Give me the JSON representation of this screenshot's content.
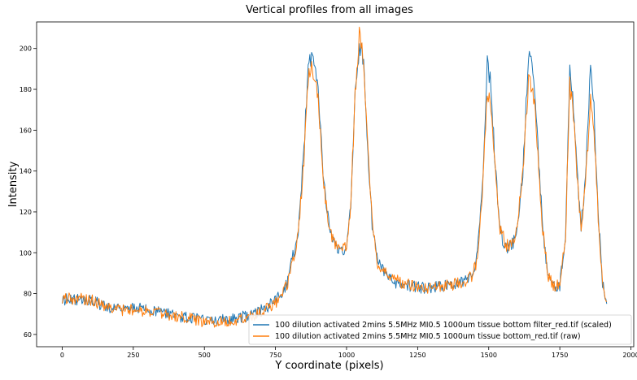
{
  "chart_data": {
    "type": "line",
    "title": "Vertical profiles from all images",
    "xlabel": "Y coordinate (pixels)",
    "ylabel": "Intensity",
    "xlim": [
      -90,
      2010
    ],
    "ylim": [
      54,
      213
    ],
    "xticks": [
      0,
      250,
      500,
      750,
      1000,
      1250,
      1500,
      1750,
      2000
    ],
    "yticks": [
      60,
      80,
      100,
      120,
      140,
      160,
      180,
      200
    ],
    "legend_position": "lower-right",
    "grid": false,
    "series": [
      {
        "name": "100 dilution activated 2mins 5.5MHz MI0.5 1000um tissue bottom filter_red.tif (scaled)",
        "color": "#1f77b4",
        "points": [
          [
            0,
            77
          ],
          [
            100,
            77
          ],
          [
            150,
            74
          ],
          [
            200,
            72
          ],
          [
            250,
            73
          ],
          [
            300,
            72
          ],
          [
            350,
            71
          ],
          [
            400,
            69
          ],
          [
            450,
            68
          ],
          [
            500,
            67
          ],
          [
            550,
            67
          ],
          [
            600,
            68
          ],
          [
            650,
            69
          ],
          [
            700,
            72
          ],
          [
            750,
            76
          ],
          [
            790,
            85
          ],
          [
            830,
            110
          ],
          [
            850,
            150
          ],
          [
            865,
            190
          ],
          [
            880,
            199
          ],
          [
            900,
            180
          ],
          [
            920,
            135
          ],
          [
            940,
            112
          ],
          [
            960,
            103
          ],
          [
            980,
            100
          ],
          [
            1000,
            104
          ],
          [
            1015,
            125
          ],
          [
            1030,
            180
          ],
          [
            1045,
            200
          ],
          [
            1060,
            195
          ],
          [
            1075,
            150
          ],
          [
            1090,
            115
          ],
          [
            1110,
            95
          ],
          [
            1150,
            87
          ],
          [
            1200,
            84
          ],
          [
            1250,
            83
          ],
          [
            1300,
            83
          ],
          [
            1350,
            84
          ],
          [
            1400,
            85
          ],
          [
            1440,
            88
          ],
          [
            1460,
            98
          ],
          [
            1480,
            140
          ],
          [
            1495,
            192
          ],
          [
            1505,
            185
          ],
          [
            1520,
            150
          ],
          [
            1540,
            110
          ],
          [
            1560,
            103
          ],
          [
            1580,
            103
          ],
          [
            1600,
            110
          ],
          [
            1620,
            140
          ],
          [
            1640,
            195
          ],
          [
            1655,
            190
          ],
          [
            1670,
            160
          ],
          [
            1690,
            110
          ],
          [
            1710,
            88
          ],
          [
            1730,
            83
          ],
          [
            1750,
            84
          ],
          [
            1770,
            110
          ],
          [
            1785,
            190
          ],
          [
            1795,
            180
          ],
          [
            1810,
            140
          ],
          [
            1825,
            113
          ],
          [
            1840,
            135
          ],
          [
            1858,
            190
          ],
          [
            1870,
            170
          ],
          [
            1885,
            120
          ],
          [
            1900,
            85
          ],
          [
            1915,
            75
          ]
        ]
      },
      {
        "name": "100 dilution activated 2mins 5.5MHz MI0.5 1000um tissue bottom_red.tif (raw)",
        "color": "#ff7f0e",
        "points": [
          [
            0,
            78
          ],
          [
            100,
            77
          ],
          [
            150,
            74
          ],
          [
            200,
            72
          ],
          [
            250,
            72
          ],
          [
            300,
            71
          ],
          [
            350,
            70
          ],
          [
            400,
            69
          ],
          [
            450,
            68
          ],
          [
            500,
            66
          ],
          [
            550,
            66
          ],
          [
            600,
            67
          ],
          [
            650,
            68
          ],
          [
            700,
            71
          ],
          [
            750,
            75
          ],
          [
            790,
            84
          ],
          [
            830,
            108
          ],
          [
            850,
            145
          ],
          [
            865,
            185
          ],
          [
            880,
            192
          ],
          [
            900,
            175
          ],
          [
            920,
            133
          ],
          [
            940,
            112
          ],
          [
            960,
            104
          ],
          [
            980,
            101
          ],
          [
            1000,
            104
          ],
          [
            1015,
            124
          ],
          [
            1030,
            178
          ],
          [
            1045,
            206
          ],
          [
            1060,
            196
          ],
          [
            1075,
            150
          ],
          [
            1090,
            115
          ],
          [
            1110,
            95
          ],
          [
            1150,
            88
          ],
          [
            1200,
            85
          ],
          [
            1250,
            83
          ],
          [
            1300,
            83
          ],
          [
            1350,
            84
          ],
          [
            1400,
            85
          ],
          [
            1440,
            88
          ],
          [
            1460,
            97
          ],
          [
            1480,
            135
          ],
          [
            1495,
            177
          ],
          [
            1505,
            173
          ],
          [
            1520,
            145
          ],
          [
            1540,
            112
          ],
          [
            1560,
            104
          ],
          [
            1580,
            104
          ],
          [
            1600,
            112
          ],
          [
            1620,
            140
          ],
          [
            1640,
            185
          ],
          [
            1655,
            182
          ],
          [
            1670,
            155
          ],
          [
            1690,
            110
          ],
          [
            1710,
            88
          ],
          [
            1730,
            84
          ],
          [
            1750,
            85
          ],
          [
            1770,
            108
          ],
          [
            1785,
            182
          ],
          [
            1795,
            172
          ],
          [
            1810,
            140
          ],
          [
            1825,
            112
          ],
          [
            1840,
            132
          ],
          [
            1858,
            175
          ],
          [
            1870,
            160
          ],
          [
            1885,
            118
          ],
          [
            1900,
            85
          ],
          [
            1915,
            76
          ]
        ]
      }
    ]
  }
}
